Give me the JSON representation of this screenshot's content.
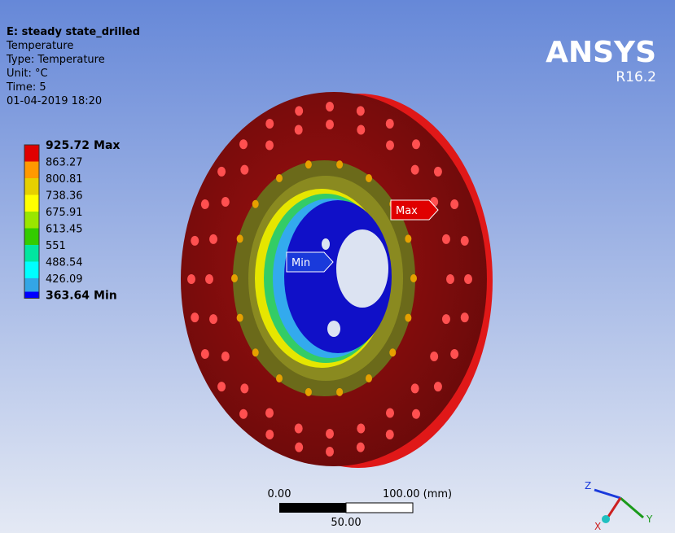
{
  "header": {
    "title": "E: steady state_drilled",
    "lines": [
      "Temperature",
      "Type: Temperature",
      "Unit: °C",
      "Time: 5",
      "01-04-2019 18:20"
    ]
  },
  "legend": {
    "levels": [
      925.72,
      863.27,
      800.81,
      738.36,
      675.91,
      613.45,
      551,
      488.54,
      426.09,
      363.64
    ],
    "colors": [
      "#e00000",
      "#ff9900",
      "#e6d000",
      "#ffff00",
      "#99e600",
      "#33cc00",
      "#00e6a0",
      "#00ffff",
      "#33a6e6",
      "#0000ff"
    ],
    "max_tag": "Max",
    "min_tag": "Min"
  },
  "logo": {
    "name": "ANSYS",
    "version": "R16.2"
  },
  "probes": {
    "max": "Max",
    "min": "Min"
  },
  "scale_bar": {
    "start": "0.00",
    "end": "100.00 (mm)",
    "mid": "50.00"
  },
  "triad": {
    "z": "Z",
    "x": "X",
    "y": "Y"
  }
}
